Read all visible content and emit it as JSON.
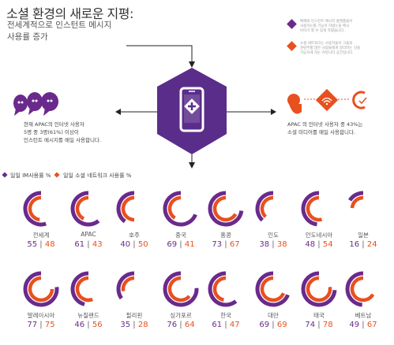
{
  "header": {
    "title": "소셜 환경의 새로운 지평:",
    "subtitle": "전세계적으로 인스턴트 메시지\n사용률 증가"
  },
  "notes": [
    {
      "text": "매해와 인스턴트 메시지 플랫폼을이\n사용하는를 기능이 하였는을 메시\n아이기 할 수 있게 하였습니다.",
      "color": "#6a2a8c"
    },
    {
      "text": "소셜 네트워크는 사용자들이 그들의\n관련주를 많은 사람들에게 알리려는 것을\n가능하게 하는 커뮤니티 공간입니다.",
      "color": "#e8501f"
    }
  ],
  "stats": {
    "left": "현재 APAC의 인터넷 사용자\n5명 중 3명(61%) 이상이\n인스턴트 메시지를 매일 사용합니다.",
    "right": "APAC 의 인터넷 사용자 중 43%는\n소셜 미디어를 매일 사용합니다."
  },
  "legend": {
    "im": "일일 IM사용률 %",
    "sns": "일일 소셜 네트워크 사용률 %"
  },
  "colors": {
    "purple": "#6a2a8c",
    "orange": "#e8501f",
    "hex": "#5b2d8a"
  },
  "icons": [
    "speech-bubbles-icon",
    "smartphone-chat-icon",
    "social-share-icon"
  ],
  "chart_data": {
    "type": "radial-bar",
    "series": [
      {
        "name": "일일 IM사용률 %",
        "color": "#6a2a8c"
      },
      {
        "name": "일일 소셜 네트워크 사용률 %",
        "color": "#e8501f"
      }
    ],
    "countries": [
      {
        "name": "전세계",
        "im": 55,
        "sns": 48
      },
      {
        "name": "APAC",
        "im": 61,
        "sns": 43
      },
      {
        "name": "호주",
        "im": 40,
        "sns": 50
      },
      {
        "name": "중국",
        "im": 69,
        "sns": 41
      },
      {
        "name": "홍콩",
        "im": 73,
        "sns": 67
      },
      {
        "name": "인도",
        "im": 38,
        "sns": 38
      },
      {
        "name": "인도네시아",
        "im": 48,
        "sns": 54
      },
      {
        "name": "일본",
        "im": 16,
        "sns": 24
      },
      {
        "name": "말레이시아",
        "im": 77,
        "sns": 75
      },
      {
        "name": "뉴질랜드",
        "im": 46,
        "sns": 56
      },
      {
        "name": "필리핀",
        "im": 35,
        "sns": 28
      },
      {
        "name": "싱가포르",
        "im": 76,
        "sns": 64
      },
      {
        "name": "한국",
        "im": 61,
        "sns": 47
      },
      {
        "name": "대만",
        "im": 69,
        "sns": 69
      },
      {
        "name": "태국",
        "im": 74,
        "sns": 78
      },
      {
        "name": "베트남",
        "im": 49,
        "sns": 67
      }
    ]
  }
}
